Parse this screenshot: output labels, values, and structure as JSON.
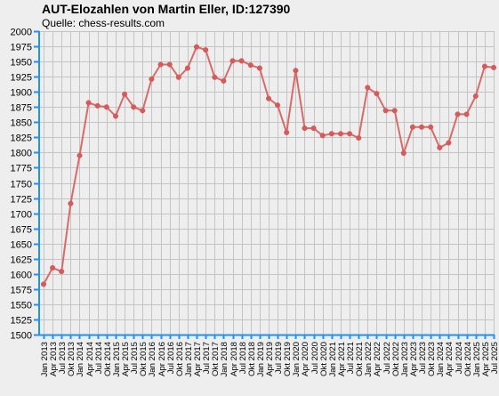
{
  "title": "AUT-Elozahlen von Martin Eller, ID:127390",
  "subtitle": "Quelle: chess-results.com",
  "colors": {
    "background": "#eeeeee",
    "grid": "#c4c4c4",
    "axis": "#1e90ff",
    "line": "#d96a6a",
    "marker": "#d55b5b"
  },
  "chart_data": {
    "type": "line",
    "ylim": [
      1500,
      2000
    ],
    "yticks": [
      1500,
      1525,
      1550,
      1575,
      1600,
      1625,
      1650,
      1675,
      1700,
      1725,
      1750,
      1775,
      1800,
      1825,
      1850,
      1875,
      1900,
      1925,
      1950,
      1975,
      2000
    ],
    "grid": true,
    "legend": "none",
    "x_labels": [
      "Jan 2013",
      "Apr 2013",
      "Jul 2013",
      "Okt 2013",
      "Jan 2014",
      "Apr 2014",
      "Jul 2014",
      "Okt 2014",
      "Jan 2015",
      "Apr 2015",
      "Jul 2015",
      "Okt 2015",
      "Jan 2016",
      "Apr 2016",
      "Jul 2016",
      "Okt 2016",
      "Jan 2017",
      "Apr 2017",
      "Jul 2017",
      "Okt 2017",
      "Jan 2018",
      "Apr 2018",
      "Jul 2018",
      "Okt 2018",
      "Jan 2019",
      "Apr 2019",
      "Jul 2019",
      "Okt 2019",
      "Jan 2020",
      "Apr 2020",
      "Jul 2020",
      "Okt 2020",
      "Jan 2021",
      "Apr 2021",
      "Jul 2021",
      "Okt 2021",
      "Jan 2022",
      "Apr 2022",
      "Jul 2022",
      "Okt 2022",
      "Jan 2023",
      "Apr 2023",
      "Jul 2023",
      "Okt 2023",
      "Jan 2024",
      "Apr 2024",
      "Jul 2024",
      "Okt 2024",
      "Jan 2025",
      "Apr 2025",
      "Jul 2025"
    ],
    "series": [
      {
        "values": [
          1583,
          1610,
          1604,
          1716,
          1795,
          1882,
          1877,
          1875,
          1860,
          1896,
          1875,
          1869,
          1921,
          1945,
          1945,
          1924,
          1939,
          1974,
          1969,
          1924,
          1918,
          1951,
          1951,
          1944,
          1939,
          1889,
          1878,
          1833,
          1935,
          1840,
          1840,
          1828,
          1831,
          1831,
          1831,
          1824,
          1907,
          1897,
          1869,
          1869,
          1799,
          1842,
          1842,
          1842,
          1808,
          1816,
          1863,
          1863,
          1893,
          1942,
          1940
        ]
      }
    ]
  }
}
